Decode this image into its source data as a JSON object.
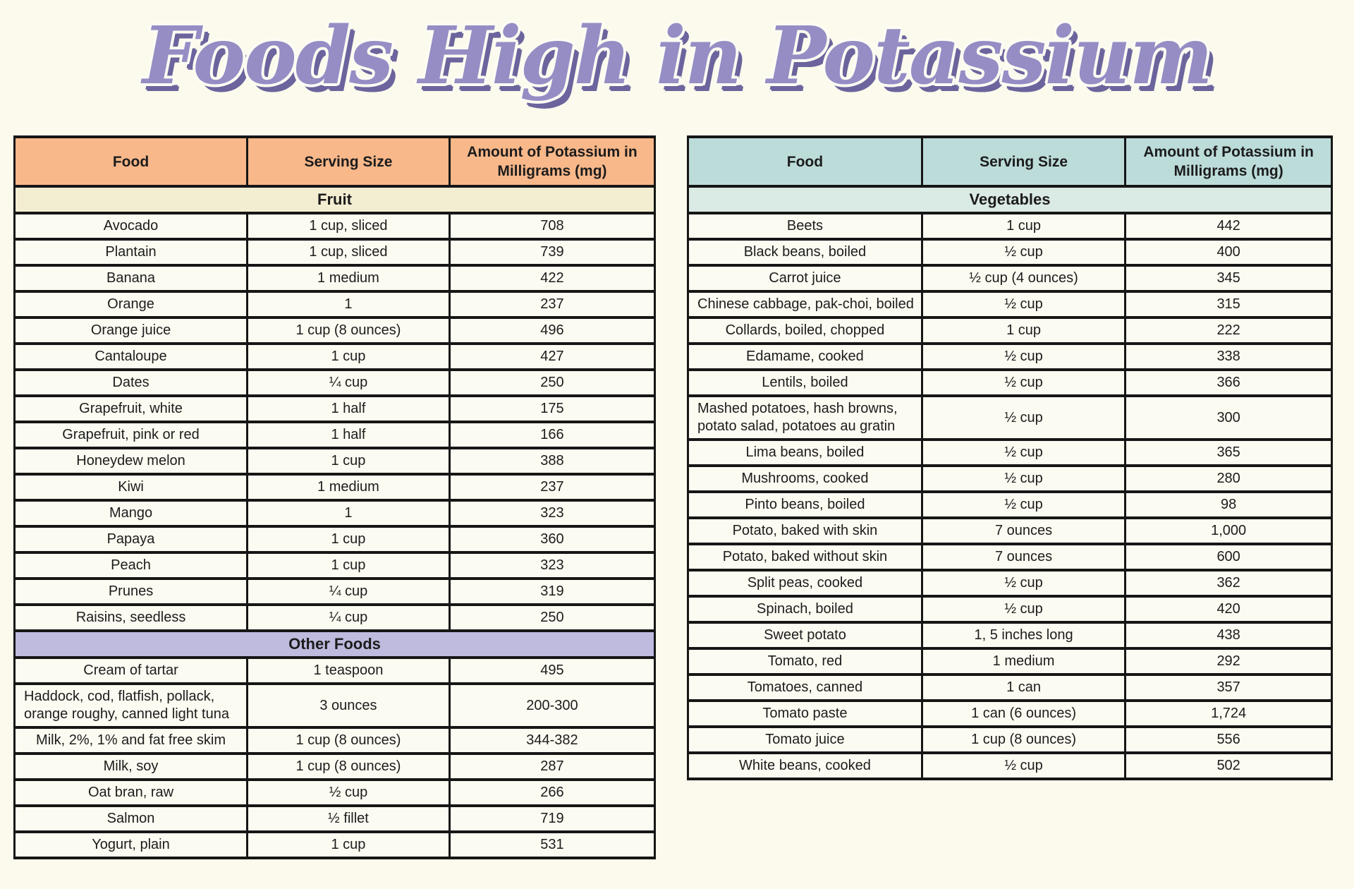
{
  "page": {
    "title": "Foods High in Potassium",
    "background_color": "#FBFAEC",
    "title_fill_color": "#958DC4",
    "title_shadow_color": "#6B649D",
    "row_background_color": "#FCFBF1",
    "border_color": "#161616"
  },
  "tables": [
    {
      "name": "fruit-and-other-foods",
      "header_color": "#F8B88A",
      "columns": [
        "Food",
        "Serving Size",
        "Amount of Potassium in Milligrams (mg)"
      ],
      "sections": [
        {
          "label": "Fruit",
          "color": "#F3EDD2",
          "rows": [
            {
              "food": "Avocado",
              "serving": "1 cup, sliced",
              "amount": "708"
            },
            {
              "food": "Plantain",
              "serving": "1 cup, sliced",
              "amount": "739"
            },
            {
              "food": "Banana",
              "serving": "1 medium",
              "amount": "422"
            },
            {
              "food": "Orange",
              "serving": "1",
              "amount": "237"
            },
            {
              "food": "Orange juice",
              "serving": "1 cup (8 ounces)",
              "amount": "496"
            },
            {
              "food": "Cantaloupe",
              "serving": "1 cup",
              "amount": "427"
            },
            {
              "food": "Dates",
              "serving": "¼ cup",
              "amount": "250"
            },
            {
              "food": "Grapefruit, white",
              "serving": "1 half",
              "amount": "175"
            },
            {
              "food": "Grapefruit, pink or red",
              "serving": "1 half",
              "amount": "166"
            },
            {
              "food": "Honeydew melon",
              "serving": "1 cup",
              "amount": "388"
            },
            {
              "food": "Kiwi",
              "serving": "1 medium",
              "amount": "237"
            },
            {
              "food": "Mango",
              "serving": "1",
              "amount": "323"
            },
            {
              "food": "Papaya",
              "serving": "1 cup",
              "amount": "360"
            },
            {
              "food": "Peach",
              "serving": "1 cup",
              "amount": "323"
            },
            {
              "food": "Prunes",
              "serving": "¼ cup",
              "amount": "319"
            },
            {
              "food": "Raisins, seedless",
              "serving": "¼ cup",
              "amount": "250"
            }
          ]
        },
        {
          "label": "Other Foods",
          "color": "#BEBBDF",
          "rows": [
            {
              "food": "Cream of tartar",
              "serving": "1 teaspoon",
              "amount": "495"
            },
            {
              "food": "Haddock, cod, flatfish, pollack, orange roughy, canned light tuna",
              "serving": "3 ounces",
              "amount": "200-300"
            },
            {
              "food": "Milk, 2%, 1% and fat free skim",
              "serving": "1 cup (8 ounces)",
              "amount": "344-382"
            },
            {
              "food": "Milk, soy",
              "serving": "1 cup (8 ounces)",
              "amount": "287"
            },
            {
              "food": "Oat bran, raw",
              "serving": "½ cup",
              "amount": "266"
            },
            {
              "food": "Salmon",
              "serving": "½ fillet",
              "amount": "719"
            },
            {
              "food": "Yogurt, plain",
              "serving": "1 cup",
              "amount": "531"
            }
          ]
        }
      ]
    },
    {
      "name": "vegetables",
      "header_color": "#BCDCDA",
      "columns": [
        "Food",
        "Serving Size",
        "Amount of Potassium in Milligrams (mg)"
      ],
      "sections": [
        {
          "label": "Vegetables",
          "color": "#DAEAE5",
          "rows": [
            {
              "food": "Beets",
              "serving": "1 cup",
              "amount": "442"
            },
            {
              "food": "Black beans, boiled",
              "serving": "½ cup",
              "amount": "400"
            },
            {
              "food": "Carrot juice",
              "serving": "½ cup (4 ounces)",
              "amount": "345"
            },
            {
              "food": "Chinese cabbage, pak-choi, boiled",
              "serving": "½ cup",
              "amount": "315"
            },
            {
              "food": "Collards, boiled, chopped",
              "serving": "1 cup",
              "amount": "222"
            },
            {
              "food": "Edamame, cooked",
              "serving": "½ cup",
              "amount": "338"
            },
            {
              "food": "Lentils, boiled",
              "serving": "½ cup",
              "amount": "366"
            },
            {
              "food": "Mashed potatoes, hash browns, potato salad, potatoes au gratin",
              "serving": "½ cup",
              "amount": "300"
            },
            {
              "food": "Lima beans, boiled",
              "serving": "½ cup",
              "amount": "365"
            },
            {
              "food": "Mushrooms, cooked",
              "serving": "½ cup",
              "amount": "280"
            },
            {
              "food": "Pinto beans, boiled",
              "serving": "½ cup",
              "amount": "98"
            },
            {
              "food": "Potato, baked with skin",
              "serving": "7 ounces",
              "amount": "1,000"
            },
            {
              "food": "Potato, baked without skin",
              "serving": "7 ounces",
              "amount": "600"
            },
            {
              "food": "Split peas, cooked",
              "serving": "½ cup",
              "amount": "362"
            },
            {
              "food": "Spinach, boiled",
              "serving": "½ cup",
              "amount": "420"
            },
            {
              "food": "Sweet potato",
              "serving": "1, 5 inches long",
              "amount": "438"
            },
            {
              "food": "Tomato, red",
              "serving": "1 medium",
              "amount": "292"
            },
            {
              "food": "Tomatoes, canned",
              "serving": "1 can",
              "amount": "357"
            },
            {
              "food": "Tomato paste",
              "serving": "1 can (6 ounces)",
              "amount": "1,724"
            },
            {
              "food": "Tomato juice",
              "serving": "1 cup (8 ounces)",
              "amount": "556"
            },
            {
              "food": "White beans, cooked",
              "serving": "½ cup",
              "amount": "502"
            }
          ]
        }
      ]
    }
  ]
}
